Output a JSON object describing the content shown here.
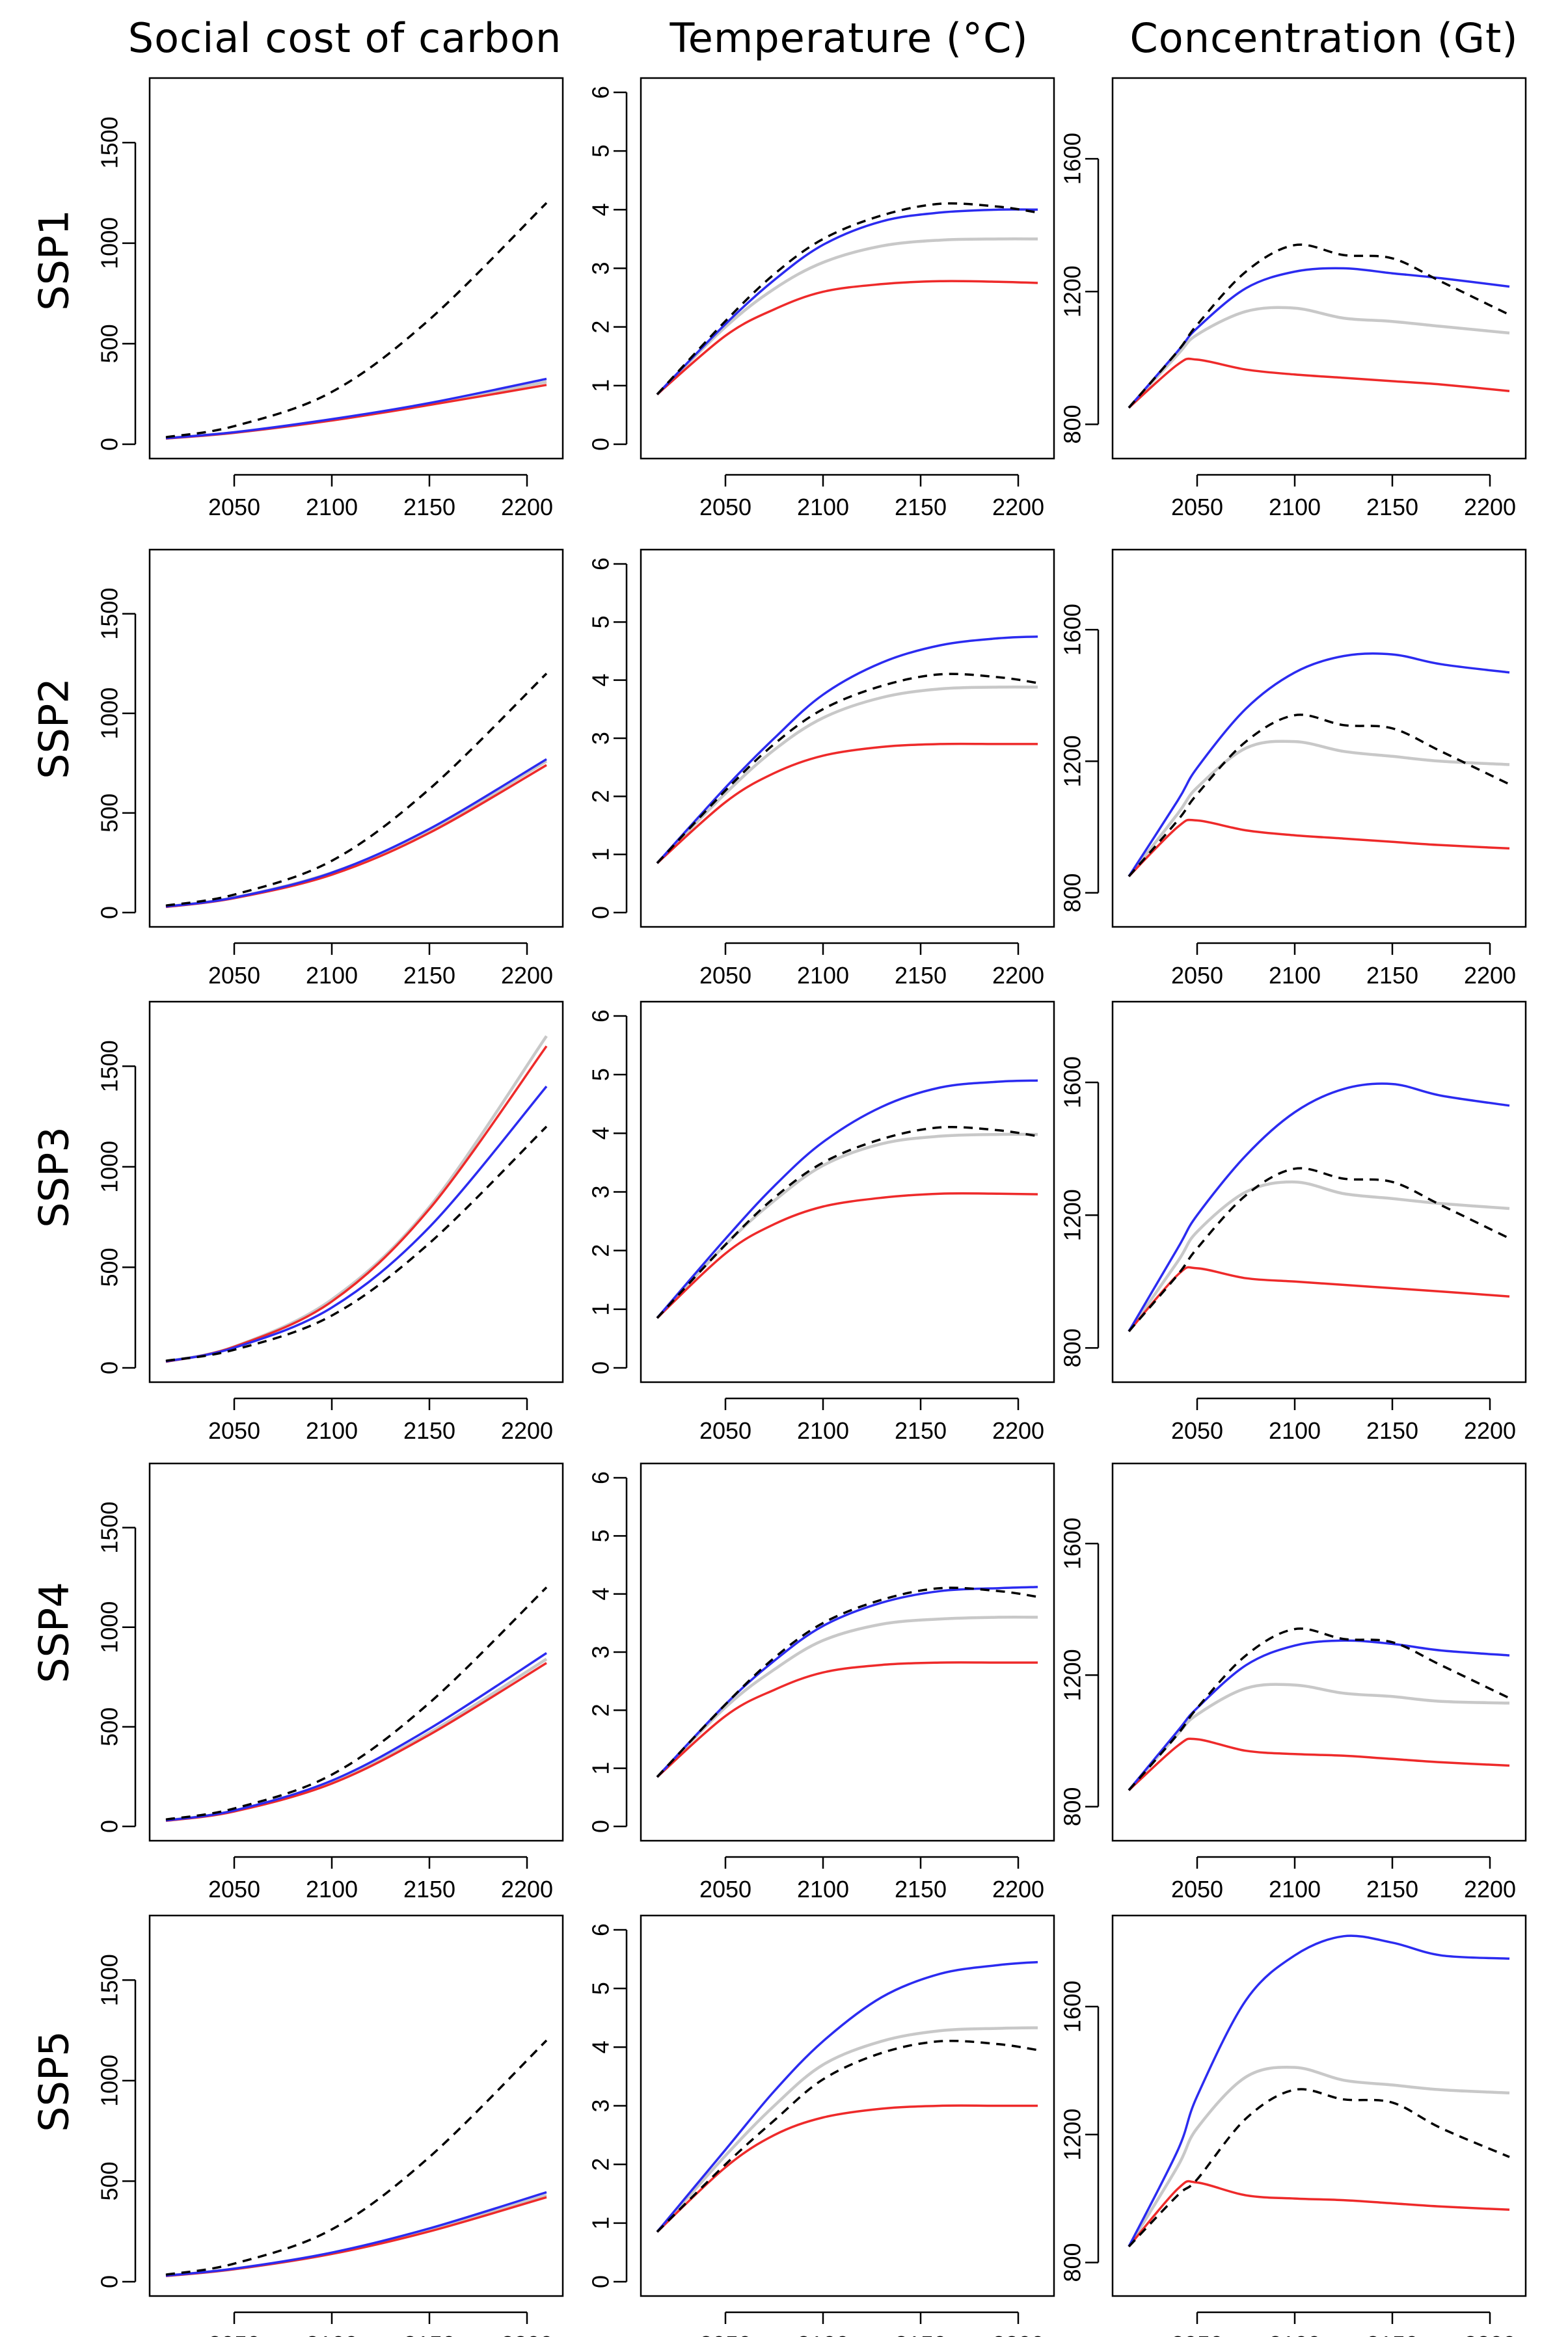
{
  "figure": {
    "column_titles": [
      "Social cost of carbon",
      "Temperature (°C)",
      "Concentration (Gt)"
    ],
    "row_titles": [
      "SSP1",
      "SSP2",
      "SSP3",
      "SSP4",
      "SSP5"
    ],
    "series_colors": {
      "baseline": "#000000",
      "blue": "#2b2bf0",
      "gray": "#c8c8c8",
      "red": "#ee2a2a"
    },
    "x_ticks": [
      2050,
      2100,
      2150,
      2200
    ]
  },
  "chart_data": [
    {
      "row": "SSP1",
      "col": "Social cost of carbon",
      "type": "line",
      "xlim": [
        2015,
        2210
      ],
      "ylim": [
        0,
        1750
      ],
      "yticks": [
        0,
        500,
        1000,
        1500
      ],
      "x": [
        2015,
        2050,
        2100,
        2150,
        2210
      ],
      "series": [
        {
          "name": "baseline",
          "style": "dashed",
          "values": [
            35,
            90,
            260,
            620,
            1200
          ]
        },
        {
          "name": "blue",
          "values": [
            30,
            60,
            125,
            205,
            325
          ]
        },
        {
          "name": "gray",
          "values": [
            30,
            58,
            120,
            200,
            310
          ]
        },
        {
          "name": "red",
          "values": [
            28,
            57,
            118,
            195,
            295
          ]
        }
      ]
    },
    {
      "row": "SSP1",
      "col": "Temperature (°C)",
      "type": "line",
      "xlim": [
        2015,
        2210
      ],
      "ylim": [
        0,
        6
      ],
      "yticks": [
        0,
        1,
        2,
        3,
        4,
        5,
        6
      ],
      "x": [
        2015,
        2050,
        2075,
        2100,
        2130,
        2160,
        2190,
        2210
      ],
      "series": [
        {
          "name": "baseline",
          "style": "dashed",
          "values": [
            0.85,
            2.1,
            2.9,
            3.5,
            3.9,
            4.1,
            4.05,
            3.95
          ]
        },
        {
          "name": "blue",
          "values": [
            0.85,
            2.05,
            2.8,
            3.4,
            3.8,
            3.95,
            4.0,
            4.0
          ]
        },
        {
          "name": "gray",
          "values": [
            0.85,
            2.0,
            2.65,
            3.1,
            3.38,
            3.48,
            3.5,
            3.5
          ]
        },
        {
          "name": "red",
          "values": [
            0.85,
            1.85,
            2.3,
            2.6,
            2.73,
            2.78,
            2.77,
            2.75
          ]
        }
      ]
    },
    {
      "row": "SSP1",
      "col": "Concentration (Gt)",
      "type": "line",
      "xlim": [
        2015,
        2210
      ],
      "ylim": [
        740,
        1800
      ],
      "yticks": [
        800,
        1200,
        1600
      ],
      "x": [
        2015,
        2040,
        2050,
        2075,
        2100,
        2125,
        2150,
        2175,
        2210
      ],
      "series": [
        {
          "name": "baseline",
          "style": "dashed",
          "values": [
            850,
            1020,
            1100,
            1260,
            1340,
            1310,
            1300,
            1230,
            1130
          ]
        },
        {
          "name": "blue",
          "values": [
            850,
            1020,
            1090,
            1210,
            1260,
            1270,
            1255,
            1240,
            1215
          ]
        },
        {
          "name": "gray",
          "values": [
            850,
            1010,
            1070,
            1140,
            1150,
            1120,
            1110,
            1095,
            1075
          ]
        },
        {
          "name": "red",
          "values": [
            850,
            980,
            995,
            965,
            950,
            940,
            930,
            920,
            900
          ]
        }
      ]
    },
    {
      "row": "SSP2",
      "col": "Social cost of carbon",
      "type": "line",
      "xlim": [
        2015,
        2210
      ],
      "ylim": [
        0,
        1750
      ],
      "yticks": [
        0,
        500,
        1000,
        1500
      ],
      "x": [
        2015,
        2050,
        2100,
        2150,
        2210
      ],
      "series": [
        {
          "name": "baseline",
          "style": "dashed",
          "values": [
            35,
            90,
            260,
            620,
            1200
          ]
        },
        {
          "name": "blue",
          "values": [
            30,
            75,
            200,
            420,
            770
          ]
        },
        {
          "name": "gray",
          "values": [
            30,
            75,
            200,
            410,
            760
          ]
        },
        {
          "name": "red",
          "values": [
            28,
            72,
            190,
            400,
            740
          ]
        }
      ]
    },
    {
      "row": "SSP2",
      "col": "Temperature (°C)",
      "type": "line",
      "xlim": [
        2015,
        2210
      ],
      "ylim": [
        0,
        6
      ],
      "yticks": [
        0,
        1,
        2,
        3,
        4,
        5,
        6
      ],
      "x": [
        2015,
        2050,
        2075,
        2100,
        2130,
        2160,
        2190,
        2210
      ],
      "series": [
        {
          "name": "baseline",
          "style": "dashed",
          "values": [
            0.85,
            2.1,
            2.9,
            3.5,
            3.9,
            4.1,
            4.05,
            3.95
          ]
        },
        {
          "name": "blue",
          "values": [
            0.85,
            2.15,
            3.0,
            3.75,
            4.3,
            4.6,
            4.72,
            4.75
          ]
        },
        {
          "name": "gray",
          "values": [
            0.85,
            2.05,
            2.8,
            3.35,
            3.7,
            3.85,
            3.88,
            3.88
          ]
        },
        {
          "name": "red",
          "values": [
            0.85,
            1.9,
            2.4,
            2.7,
            2.85,
            2.9,
            2.9,
            2.9
          ]
        }
      ]
    },
    {
      "row": "SSP2",
      "col": "Concentration (Gt)",
      "type": "line",
      "xlim": [
        2015,
        2210
      ],
      "ylim": [
        740,
        1800
      ],
      "yticks": [
        800,
        1200,
        1600
      ],
      "x": [
        2015,
        2040,
        2050,
        2075,
        2100,
        2125,
        2150,
        2175,
        2210
      ],
      "series": [
        {
          "name": "baseline",
          "style": "dashed",
          "values": [
            850,
            1020,
            1100,
            1260,
            1340,
            1310,
            1300,
            1230,
            1130
          ]
        },
        {
          "name": "blue",
          "values": [
            850,
            1080,
            1180,
            1360,
            1470,
            1520,
            1525,
            1495,
            1470
          ]
        },
        {
          "name": "gray",
          "values": [
            850,
            1040,
            1120,
            1240,
            1260,
            1230,
            1215,
            1200,
            1190
          ]
        },
        {
          "name": "red",
          "values": [
            850,
            1000,
            1020,
            990,
            975,
            965,
            955,
            945,
            935
          ]
        }
      ]
    },
    {
      "row": "SSP3",
      "col": "Social cost of carbon",
      "type": "line",
      "xlim": [
        2015,
        2210
      ],
      "ylim": [
        0,
        1750
      ],
      "yticks": [
        0,
        500,
        1000,
        1500
      ],
      "x": [
        2015,
        2050,
        2100,
        2150,
        2210
      ],
      "series": [
        {
          "name": "baseline",
          "style": "dashed",
          "values": [
            35,
            90,
            260,
            620,
            1200
          ]
        },
        {
          "name": "blue",
          "values": [
            32,
            100,
            300,
            700,
            1400
          ]
        },
        {
          "name": "gray",
          "values": [
            32,
            105,
            340,
            800,
            1650
          ]
        },
        {
          "name": "red",
          "values": [
            30,
            105,
            330,
            790,
            1600
          ]
        }
      ]
    },
    {
      "row": "SSP3",
      "col": "Temperature (°C)",
      "type": "line",
      "xlim": [
        2015,
        2210
      ],
      "ylim": [
        0,
        6
      ],
      "yticks": [
        0,
        1,
        2,
        3,
        4,
        5,
        6
      ],
      "x": [
        2015,
        2050,
        2075,
        2100,
        2130,
        2160,
        2190,
        2210
      ],
      "series": [
        {
          "name": "baseline",
          "style": "dashed",
          "values": [
            0.85,
            2.1,
            2.9,
            3.5,
            3.9,
            4.1,
            4.05,
            3.95
          ]
        },
        {
          "name": "blue",
          "values": [
            0.85,
            2.2,
            3.1,
            3.85,
            4.45,
            4.78,
            4.88,
            4.9
          ]
        },
        {
          "name": "gray",
          "values": [
            0.85,
            2.1,
            2.85,
            3.45,
            3.82,
            3.95,
            3.98,
            3.98
          ]
        },
        {
          "name": "red",
          "values": [
            0.85,
            1.95,
            2.45,
            2.75,
            2.9,
            2.97,
            2.97,
            2.96
          ]
        }
      ]
    },
    {
      "row": "SSP3",
      "col": "Concentration (Gt)",
      "type": "line",
      "xlim": [
        2015,
        2210
      ],
      "ylim": [
        740,
        1800
      ],
      "yticks": [
        800,
        1200,
        1600
      ],
      "x": [
        2015,
        2040,
        2050,
        2075,
        2100,
        2125,
        2150,
        2175,
        2210
      ],
      "series": [
        {
          "name": "baseline",
          "style": "dashed",
          "values": [
            850,
            1020,
            1100,
            1260,
            1340,
            1310,
            1300,
            1230,
            1130
          ]
        },
        {
          "name": "blue",
          "values": [
            850,
            1100,
            1200,
            1380,
            1510,
            1580,
            1595,
            1560,
            1530
          ]
        },
        {
          "name": "gray",
          "values": [
            850,
            1060,
            1150,
            1270,
            1300,
            1265,
            1250,
            1235,
            1220
          ]
        },
        {
          "name": "red",
          "values": [
            850,
            1020,
            1040,
            1010,
            1000,
            990,
            980,
            970,
            955
          ]
        }
      ]
    },
    {
      "row": "SSP4",
      "col": "Social cost of carbon",
      "type": "line",
      "xlim": [
        2015,
        2210
      ],
      "ylim": [
        0,
        1750
      ],
      "yticks": [
        0,
        500,
        1000,
        1500
      ],
      "x": [
        2015,
        2050,
        2100,
        2150,
        2210
      ],
      "series": [
        {
          "name": "baseline",
          "style": "dashed",
          "values": [
            35,
            90,
            260,
            620,
            1200
          ]
        },
        {
          "name": "blue",
          "values": [
            30,
            80,
            230,
            490,
            870
          ]
        },
        {
          "name": "gray",
          "values": [
            30,
            78,
            220,
            470,
            840
          ]
        },
        {
          "name": "red",
          "values": [
            28,
            75,
            215,
            460,
            820
          ]
        }
      ]
    },
    {
      "row": "SSP4",
      "col": "Temperature (°C)",
      "type": "line",
      "xlim": [
        2015,
        2210
      ],
      "ylim": [
        0,
        6
      ],
      "yticks": [
        0,
        1,
        2,
        3,
        4,
        5,
        6
      ],
      "x": [
        2015,
        2050,
        2075,
        2100,
        2130,
        2160,
        2190,
        2210
      ],
      "series": [
        {
          "name": "baseline",
          "style": "dashed",
          "values": [
            0.85,
            2.1,
            2.9,
            3.5,
            3.9,
            4.1,
            4.05,
            3.95
          ]
        },
        {
          "name": "blue",
          "values": [
            0.85,
            2.1,
            2.85,
            3.45,
            3.85,
            4.05,
            4.1,
            4.12
          ]
        },
        {
          "name": "gray",
          "values": [
            0.85,
            2.05,
            2.7,
            3.2,
            3.48,
            3.57,
            3.6,
            3.6
          ]
        },
        {
          "name": "red",
          "values": [
            0.85,
            1.9,
            2.35,
            2.65,
            2.78,
            2.82,
            2.82,
            2.82
          ]
        }
      ]
    },
    {
      "row": "SSP4",
      "col": "Concentration (Gt)",
      "type": "line",
      "xlim": [
        2015,
        2210
      ],
      "ylim": [
        740,
        1800
      ],
      "yticks": [
        800,
        1200,
        1600
      ],
      "x": [
        2015,
        2040,
        2050,
        2075,
        2100,
        2125,
        2150,
        2175,
        2210
      ],
      "series": [
        {
          "name": "baseline",
          "style": "dashed",
          "values": [
            850,
            1020,
            1100,
            1260,
            1340,
            1310,
            1300,
            1230,
            1130
          ]
        },
        {
          "name": "blue",
          "values": [
            850,
            1030,
            1100,
            1230,
            1290,
            1305,
            1295,
            1275,
            1260
          ]
        },
        {
          "name": "gray",
          "values": [
            850,
            1020,
            1080,
            1160,
            1170,
            1145,
            1135,
            1120,
            1115
          ]
        },
        {
          "name": "red",
          "values": [
            850,
            985,
            1005,
            970,
            960,
            955,
            945,
            935,
            925
          ]
        }
      ]
    },
    {
      "row": "SSP5",
      "col": "Social cost of carbon",
      "type": "line",
      "xlim": [
        2015,
        2210
      ],
      "ylim": [
        0,
        1750
      ],
      "yticks": [
        0,
        500,
        1000,
        1500
      ],
      "x": [
        2015,
        2050,
        2100,
        2150,
        2210
      ],
      "series": [
        {
          "name": "baseline",
          "style": "dashed",
          "values": [
            35,
            90,
            260,
            620,
            1200
          ]
        },
        {
          "name": "blue",
          "values": [
            30,
            65,
            145,
            265,
            445
          ]
        },
        {
          "name": "gray",
          "values": [
            30,
            63,
            140,
            255,
            430
          ]
        },
        {
          "name": "red",
          "values": [
            28,
            62,
            138,
            250,
            420
          ]
        }
      ]
    },
    {
      "row": "SSP5",
      "col": "Temperature (°C)",
      "type": "line",
      "xlim": [
        2015,
        2210
      ],
      "ylim": [
        0,
        6
      ],
      "yticks": [
        0,
        1,
        2,
        3,
        4,
        5,
        6
      ],
      "x": [
        2015,
        2050,
        2075,
        2100,
        2130,
        2160,
        2190,
        2210
      ],
      "series": [
        {
          "name": "baseline",
          "style": "dashed",
          "values": [
            0.85,
            2.0,
            2.75,
            3.45,
            3.9,
            4.1,
            4.05,
            3.95
          ]
        },
        {
          "name": "blue",
          "values": [
            0.85,
            2.25,
            3.25,
            4.1,
            4.85,
            5.25,
            5.4,
            5.45
          ]
        },
        {
          "name": "gray",
          "values": [
            0.85,
            2.15,
            3.0,
            3.7,
            4.1,
            4.28,
            4.32,
            4.33
          ]
        },
        {
          "name": "red",
          "values": [
            0.85,
            1.95,
            2.5,
            2.8,
            2.95,
            3.0,
            3.0,
            3.0
          ]
        }
      ]
    },
    {
      "row": "SSP5",
      "col": "Concentration (Gt)",
      "type": "line",
      "xlim": [
        2015,
        2210
      ],
      "ylim": [
        740,
        1840
      ],
      "yticks": [
        800,
        1200,
        1600
      ],
      "x": [
        2015,
        2040,
        2050,
        2075,
        2100,
        2125,
        2150,
        2175,
        2210
      ],
      "series": [
        {
          "name": "baseline",
          "style": "dashed",
          "values": [
            850,
            1010,
            1060,
            1250,
            1340,
            1310,
            1300,
            1220,
            1130
          ]
        },
        {
          "name": "blue",
          "values": [
            850,
            1150,
            1320,
            1620,
            1760,
            1820,
            1800,
            1760,
            1750
          ]
        },
        {
          "name": "gray",
          "values": [
            850,
            1100,
            1220,
            1380,
            1410,
            1370,
            1355,
            1340,
            1330
          ]
        },
        {
          "name": "red",
          "values": [
            850,
            1030,
            1050,
            1010,
            1000,
            995,
            985,
            975,
            965
          ]
        }
      ]
    }
  ]
}
